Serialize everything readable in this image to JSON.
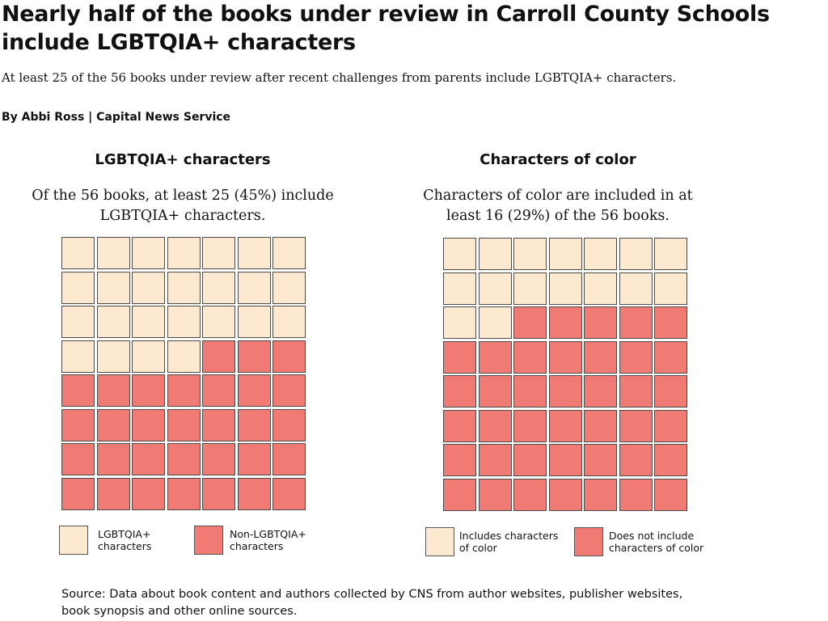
{
  "headline": "Nearly half of the books under review in Carroll County Schools include LGBTQIA+ characters",
  "dek": "At least 25 of the 56 books under review after recent challenges from parents include LGBTQIA+ characters.",
  "byline": "By Abbi Ross | Capital News Service",
  "source": "Source: Data about book content and authors collected by CNS from author websites, publisher websites, book synopsis and other online sources.",
  "colors": {
    "included": "#fde9cf",
    "not_included": "#f07a74",
    "cell_border": "#4a4a4a"
  },
  "chart_data": [
    {
      "type": "waffle",
      "title": "LGBTQIA+ characters",
      "description": "Of the 56 books, at least 25 (45%) include LGBTQIA+ characters.",
      "total": 56,
      "rows": 8,
      "columns": 7,
      "categories": [
        "LGBTQIA+ characters",
        "Non-LGBTQIA+ characters"
      ],
      "values": [
        25,
        31
      ],
      "legend": [
        {
          "label": "LGBTQIA+\ncharacters",
          "color": "#fde9cf"
        },
        {
          "label": "Non-LGBTQIA+\ncharacters",
          "color": "#f07a74"
        }
      ]
    },
    {
      "type": "waffle",
      "title": "Characters of color",
      "description": "Characters of color are included in at least 16 (29%) of the 56 books.",
      "total": 56,
      "rows": 8,
      "columns": 7,
      "categories": [
        "Includes characters of color",
        "Does not include characters of color"
      ],
      "values": [
        16,
        40
      ],
      "legend": [
        {
          "label": "Includes characters\nof color",
          "color": "#fde9cf"
        },
        {
          "label": "Does not include\ncharacters of color",
          "color": "#f07a74"
        }
      ]
    }
  ]
}
